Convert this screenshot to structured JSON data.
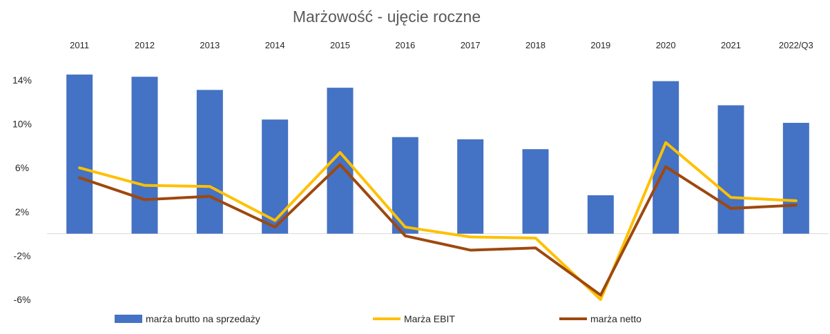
{
  "chart_data": {
    "type": "bar",
    "title": "Marżowość - ujęcie roczne",
    "categories": [
      "2011",
      "2012",
      "2013",
      "2014",
      "2015",
      "2016",
      "2017",
      "2018",
      "2019",
      "2020",
      "2021",
      "2022/Q3"
    ],
    "ylim": [
      -6,
      14
    ],
    "yticks": [
      14,
      10,
      6,
      2,
      -2,
      -6
    ],
    "ytick_labels": [
      "14%",
      "10%",
      "6%",
      "2%",
      "-2%",
      "-6%"
    ],
    "grid": false,
    "legend_position": "bottom",
    "series": [
      {
        "name": "marża brutto na sprzedaży",
        "type": "bar",
        "color": "#4472C4",
        "values": [
          14.5,
          14.3,
          13.1,
          10.4,
          13.3,
          8.8,
          8.6,
          7.7,
          3.5,
          13.9,
          11.7,
          10.1
        ]
      },
      {
        "name": "Marża EBIT",
        "type": "line",
        "color": "#FFC000",
        "values": [
          6.0,
          4.4,
          4.3,
          1.2,
          7.4,
          0.6,
          -0.3,
          -0.4,
          -6.0,
          8.3,
          3.3,
          3.0
        ]
      },
      {
        "name": "marża netto",
        "type": "line",
        "color": "#9E480E",
        "values": [
          5.1,
          3.1,
          3.4,
          0.6,
          6.3,
          -0.2,
          -1.5,
          -1.3,
          -5.6,
          6.1,
          2.3,
          2.6
        ]
      }
    ]
  }
}
